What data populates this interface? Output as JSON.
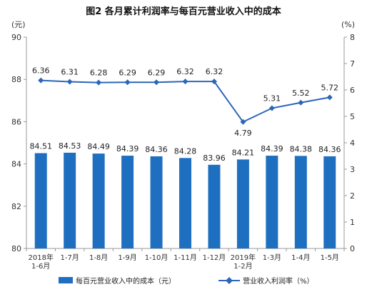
{
  "chart_data": {
    "type": "bar",
    "title": "图2  各月累计利润率与每百元营业收入中的成本",
    "left_unit": "(元)",
    "right_unit": "(%)",
    "categories": [
      [
        "2018年",
        "1-6月"
      ],
      [
        "1-7月"
      ],
      [
        "1-8月"
      ],
      [
        "1-9月"
      ],
      [
        "1-10月"
      ],
      [
        "1-11月"
      ],
      [
        "1-12月"
      ],
      [
        "2019年",
        "1-2月"
      ],
      [
        "1-3月"
      ],
      [
        "1-4月"
      ],
      [
        "1-5月"
      ]
    ],
    "y_left": {
      "lim": [
        80,
        90
      ],
      "ticks": [
        "80",
        "82",
        "84",
        "86",
        "88",
        "90"
      ]
    },
    "y_right": {
      "lim": [
        0,
        8
      ],
      "ticks": [
        "0",
        "1",
        "2",
        "3",
        "4",
        "5",
        "6",
        "7",
        "8"
      ]
    },
    "series": [
      {
        "name": "每百元营业收入中的成本（元）",
        "type": "bar",
        "axis": "left",
        "color": "#1f6fc0",
        "values": [
          84.51,
          84.53,
          84.49,
          84.39,
          84.36,
          84.28,
          83.96,
          84.21,
          84.39,
          84.38,
          84.36
        ],
        "labels": [
          "84.51",
          "84.53",
          "84.49",
          "84.39",
          "84.36",
          "84.28",
          "83.96",
          "84.21",
          "84.39",
          "84.38",
          "84.36"
        ]
      },
      {
        "name": "营业收入利润率（%）",
        "type": "line",
        "axis": "right",
        "color": "#2b66b8",
        "values": [
          6.36,
          6.31,
          6.28,
          6.29,
          6.29,
          6.32,
          6.32,
          4.79,
          5.31,
          5.52,
          5.72
        ],
        "labels": [
          "6.36",
          "6.31",
          "6.28",
          "6.29",
          "6.29",
          "6.32",
          "6.32",
          "4.79",
          "5.31",
          "5.52",
          "5.72"
        ]
      }
    ],
    "legend": "bottom"
  }
}
